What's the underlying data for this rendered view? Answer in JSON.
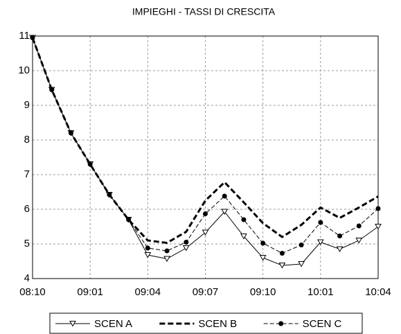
{
  "chart_data": {
    "type": "line",
    "title": "IMPIEGHI - TASSI DI CRESCITA",
    "categories": [
      "08:10",
      null,
      null,
      "09:01",
      null,
      null,
      "09:04",
      null,
      null,
      "09:07",
      null,
      null,
      "09:10",
      null,
      null,
      "10:01",
      null,
      null,
      "10:04"
    ],
    "ylim": [
      4,
      11
    ],
    "yticks": [
      4,
      5,
      6,
      7,
      8,
      9,
      10,
      11
    ],
    "grid": true,
    "legend": "bottom",
    "series": [
      {
        "name": "SCEN A",
        "color": "#000000",
        "marker": "triangle-down",
        "line_style": "solid",
        "line_width": 1,
        "values": [
          10.95,
          9.45,
          8.2,
          7.3,
          6.42,
          5.7,
          4.68,
          4.57,
          4.88,
          5.33,
          5.93,
          5.22,
          4.6,
          4.38,
          4.42,
          5.05,
          4.85,
          5.1,
          5.5
        ]
      },
      {
        "name": "SCEN B",
        "color": "#000000",
        "marker": "none",
        "line_style": "dashed",
        "line_width": 3,
        "values": [
          10.95,
          9.45,
          8.2,
          7.3,
          6.42,
          5.7,
          5.1,
          5.03,
          5.35,
          6.25,
          6.78,
          6.2,
          5.6,
          5.2,
          5.55,
          6.05,
          5.75,
          6.05,
          6.37
        ]
      },
      {
        "name": "SCEN C",
        "color": "#000000",
        "marker": "circle",
        "line_style": "dashed",
        "line_width": 1,
        "values": [
          10.95,
          9.45,
          8.2,
          7.3,
          6.42,
          5.7,
          4.88,
          4.8,
          5.05,
          5.87,
          6.38,
          5.7,
          5.02,
          4.73,
          4.97,
          5.62,
          5.23,
          5.52,
          6.02
        ]
      }
    ]
  }
}
